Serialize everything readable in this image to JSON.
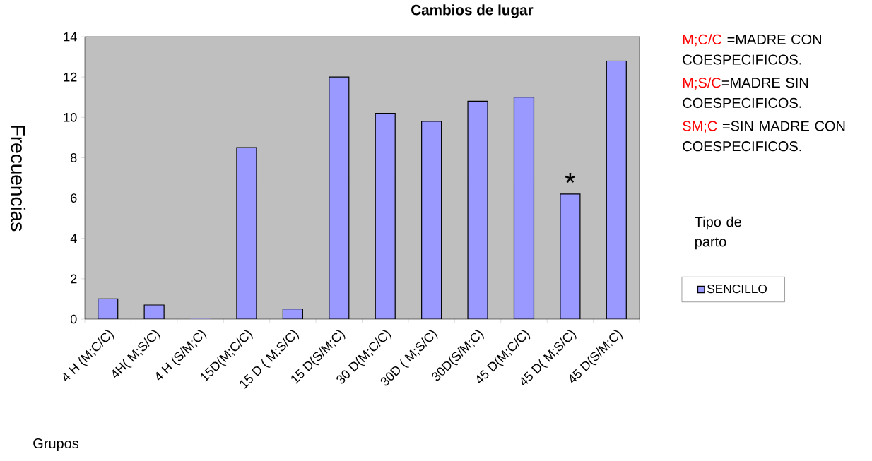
{
  "chart_data": {
    "type": "bar",
    "title": "Cambios de lugar",
    "xlabel": "Grupos",
    "ylabel": "Frecuencias",
    "legend_title": "Tipo de parto",
    "categories": [
      "4 H (M;C/C)",
      "4H( M;S/C)",
      "4 H (S/M;C)",
      "15D(M;C/C)",
      "15 D ( M;S/C)",
      "15 D(S/M;C)",
      "30 D(M;C/C)",
      "30D ( M;S/C)",
      "30D(S/M;C)",
      "45 D(M;C/C)",
      "45 D( M;S/C)",
      "45 D(S/M;C)"
    ],
    "series": [
      {
        "name": "SENCILLO",
        "color": "#9999ff",
        "values": [
          1.0,
          0.7,
          0,
          8.5,
          0.5,
          12.0,
          10.2,
          9.8,
          10.8,
          11.0,
          6.2,
          12.8
        ]
      }
    ],
    "ylim": [
      0,
      14
    ],
    "yticks": [
      0,
      2,
      4,
      6,
      8,
      10,
      12,
      14
    ],
    "legend": "right",
    "grid": false,
    "annotations": [
      "M;C/C",
      " =MADRE CON COESPECIFICOS.",
      "M;S/C",
      "=MADRE SIN COESPECIFICOS.",
      "SM;C",
      " =SIN MADRE CON COESPECIFICOS.",
      {
        "text": "*",
        "x": "45 D( M;S/C)",
        "y": 6.2
      }
    ]
  }
}
